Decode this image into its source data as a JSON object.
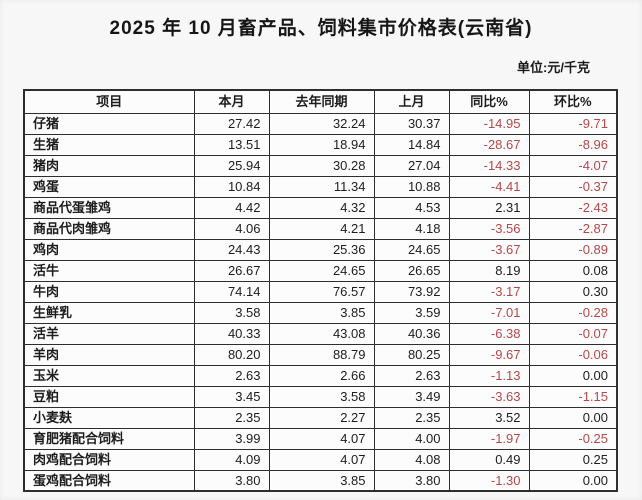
{
  "title": "2025 年 10 月畜产品、饲料集市价格表(云南省)",
  "unit_label": "单位:元/千克",
  "colors": {
    "negative_value": "#b5484a",
    "text": "#1d1d1d",
    "border": "#2e2e2e",
    "background": "#f7f7f8"
  },
  "table": {
    "headers": [
      "项目",
      "本月",
      "去年同期",
      "上月",
      "同比%",
      "环比%"
    ],
    "rows": [
      {
        "item": "仔猪",
        "current": "27.42",
        "last_year": "32.24",
        "last_month": "30.37",
        "yoy": "-14.95",
        "mom": "-9.71"
      },
      {
        "item": "生猪",
        "current": "13.51",
        "last_year": "18.94",
        "last_month": "14.84",
        "yoy": "-28.67",
        "mom": "-8.96"
      },
      {
        "item": "猪肉",
        "current": "25.94",
        "last_year": "30.28",
        "last_month": "27.04",
        "yoy": "-14.33",
        "mom": "-4.07"
      },
      {
        "item": "鸡蛋",
        "current": "10.84",
        "last_year": "11.34",
        "last_month": "10.88",
        "yoy": "-4.41",
        "mom": "-0.37"
      },
      {
        "item": "商品代蛋雏鸡",
        "current": "4.42",
        "last_year": "4.32",
        "last_month": "4.53",
        "yoy": "2.31",
        "mom": "-2.43"
      },
      {
        "item": "商品代肉雏鸡",
        "current": "4.06",
        "last_year": "4.21",
        "last_month": "4.18",
        "yoy": "-3.56",
        "mom": "-2.87"
      },
      {
        "item": "鸡肉",
        "current": "24.43",
        "last_year": "25.36",
        "last_month": "24.65",
        "yoy": "-3.67",
        "mom": "-0.89"
      },
      {
        "item": "活牛",
        "current": "26.67",
        "last_year": "24.65",
        "last_month": "26.65",
        "yoy": "8.19",
        "mom": "0.08"
      },
      {
        "item": "牛肉",
        "current": "74.14",
        "last_year": "76.57",
        "last_month": "73.92",
        "yoy": "-3.17",
        "mom": "0.30"
      },
      {
        "item": "生鲜乳",
        "current": "3.58",
        "last_year": "3.85",
        "last_month": "3.59",
        "yoy": "-7.01",
        "mom": "-0.28"
      },
      {
        "item": "活羊",
        "current": "40.33",
        "last_year": "43.08",
        "last_month": "40.36",
        "yoy": "-6.38",
        "mom": "-0.07"
      },
      {
        "item": "羊肉",
        "current": "80.20",
        "last_year": "88.79",
        "last_month": "80.25",
        "yoy": "-9.67",
        "mom": "-0.06"
      },
      {
        "item": "玉米",
        "current": "2.63",
        "last_year": "2.66",
        "last_month": "2.63",
        "yoy": "-1.13",
        "mom": "0.00"
      },
      {
        "item": "豆粕",
        "current": "3.45",
        "last_year": "3.58",
        "last_month": "3.49",
        "yoy": "-3.63",
        "mom": "-1.15"
      },
      {
        "item": "小麦麸",
        "current": "2.35",
        "last_year": "2.27",
        "last_month": "2.35",
        "yoy": "3.52",
        "mom": "0.00"
      },
      {
        "item": "育肥猪配合饲料",
        "current": "3.99",
        "last_year": "4.07",
        "last_month": "4.00",
        "yoy": "-1.97",
        "mom": "-0.25"
      },
      {
        "item": "肉鸡配合饲料",
        "current": "4.09",
        "last_year": "4.07",
        "last_month": "4.08",
        "yoy": "0.49",
        "mom": "0.25"
      },
      {
        "item": "蛋鸡配合饲料",
        "current": "3.80",
        "last_year": "3.85",
        "last_month": "3.80",
        "yoy": "-1.30",
        "mom": "0.00"
      }
    ]
  }
}
